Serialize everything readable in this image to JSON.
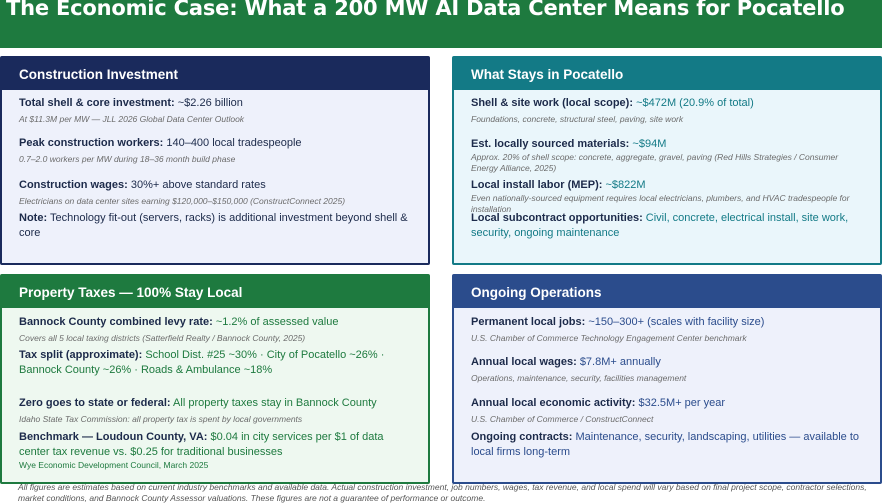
{
  "title": "The Economic Case: What a 200 MW AI Data Center Means for Pocatello",
  "construction": {
    "header": "Construction Investment",
    "items": [
      {
        "label": "Total shell & core investment:",
        "value": "~$2.26 billion",
        "note": "At $11.3M per MW — JLL 2026 Global Data Center Outlook"
      },
      {
        "label": "Peak construction workers:",
        "value": "140–400 local tradespeople",
        "note": "0.7–2.0 workers per MW during 18–36 month build phase"
      },
      {
        "label": "Construction wages:",
        "value": "30%+ above standard rates",
        "note": "Electricians on data center sites earning $120,000–$150,000 (ConstructConnect 2025)"
      },
      {
        "label": "Note:",
        "value": "Technology fit-out (servers, racks) is additional investment beyond shell & core",
        "note": ""
      }
    ]
  },
  "local": {
    "header": "What Stays in Pocatello",
    "items": [
      {
        "label": "Shell & site work (local scope):",
        "value": "~$472M (20.9% of total)",
        "note": "Foundations, concrete, structural steel, paving, site work"
      },
      {
        "label": "Est. locally sourced materials:",
        "value": "~$94M",
        "note": "Approx. 20% of shell scope: concrete, aggregate, gravel, paving (Red Hills Strategies / Consumer Energy Alliance, 2025)"
      },
      {
        "label": "Local install labor (MEP):",
        "value": "~$822M",
        "note": "Even nationally-sourced equipment requires local electricians, plumbers, and HVAC tradespeople for installation"
      },
      {
        "label": "Local subcontract opportunities:",
        "value": "Civil, concrete, electrical install, site work, security, ongoing maintenance",
        "note": ""
      }
    ]
  },
  "taxes": {
    "header": "Property Taxes — 100% Stay Local",
    "items": [
      {
        "label": "Bannock County combined levy rate:",
        "value": "~1.2% of assessed value",
        "note": "Covers all 5 local taxing districts (Satterfield Realty / Bannock County, 2025)"
      },
      {
        "label": "Tax split (approximate):",
        "value": "School Dist. #25 ~30% · City of Pocatello ~26% · Bannock County ~26% · Roads & Ambulance ~18%",
        "note": ""
      },
      {
        "label": "Zero goes to state or federal:",
        "value": "All property taxes stay in Bannock County",
        "note": "Idaho State Tax Commission: all property tax is spent by local governments"
      },
      {
        "label": "Benchmark — Loudoun County, VA:",
        "value": "$0.04 in city services per $1 of data center tax revenue vs. $0.25 for traditional businesses",
        "note": "Wye Economic Development Council, March 2025"
      }
    ]
  },
  "operations": {
    "header": "Ongoing Operations",
    "items": [
      {
        "label": "Permanent local jobs:",
        "value": "~150–300+ (scales with facility size)",
        "note": "U.S. Chamber of Commerce Technology Engagement Center benchmark"
      },
      {
        "label": "Annual local wages:",
        "value": "$7.8M+ annually",
        "note": "Operations, maintenance, security, facilities management"
      },
      {
        "label": "Annual local economic activity:",
        "value": "$32.5M+ per year",
        "note": "U.S. Chamber of Commerce / ConstructConnect"
      },
      {
        "label": "Ongoing contracts:",
        "value": "Maintenance, security, landscaping, utilities — available to local firms long-term",
        "note": ""
      }
    ]
  },
  "footer": "All figures are estimates based on current industry benchmarks and available data. Actual construction investment, job numbers, wages, tax revenue, and local spend will vary based on final project scope, contractor selections, market conditions, and Bannock County Assessor valuations. These figures are not a guarantee of performance or outcome.",
  "colors": {
    "title_bg": "#1e7a3f",
    "construction": "#1a2a5c",
    "local": "#137a86",
    "taxes": "#1e7a3f",
    "operations": "#2b4c8c"
  }
}
